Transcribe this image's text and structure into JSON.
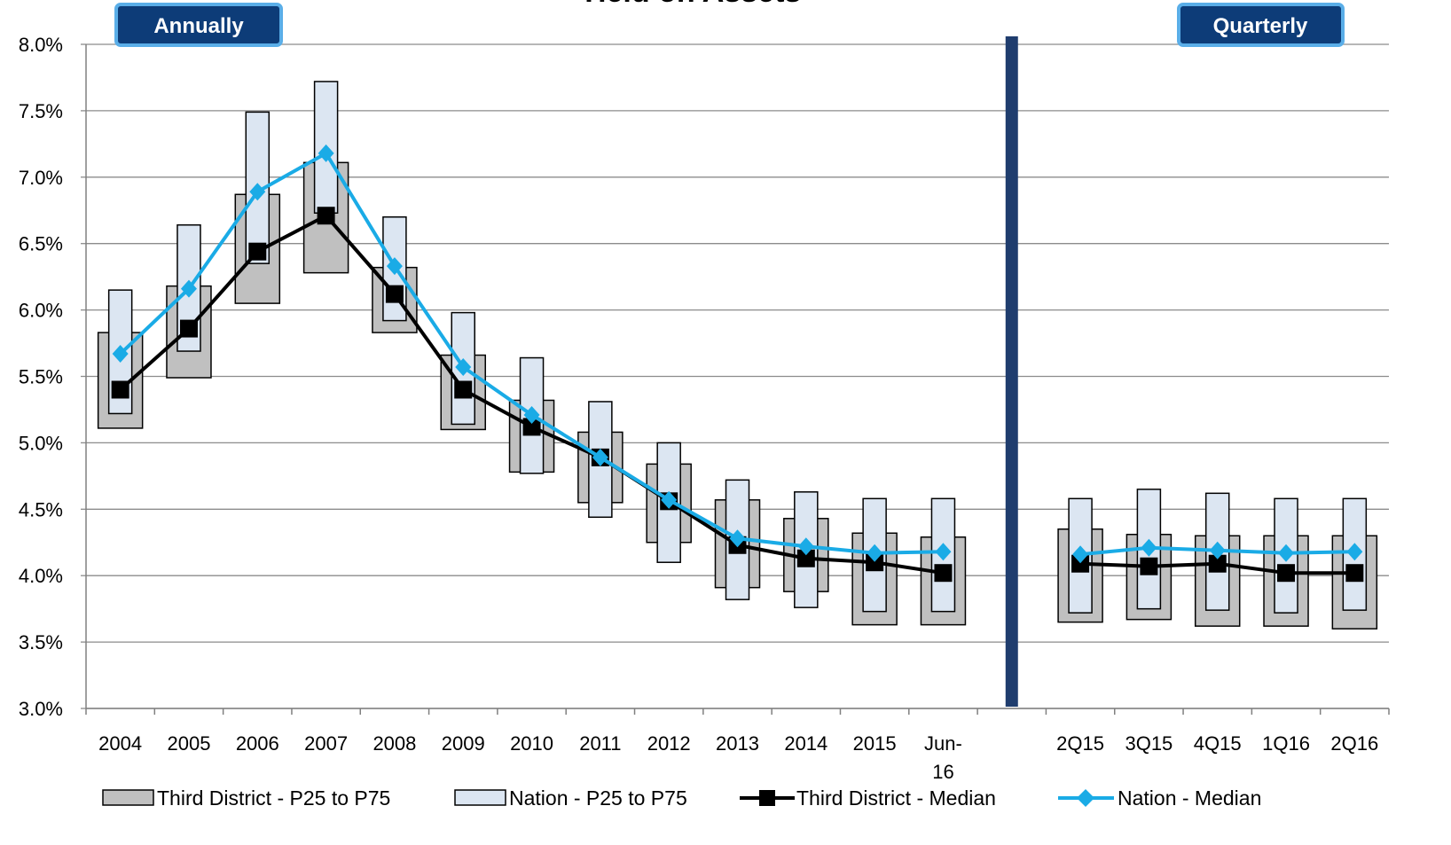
{
  "chart_data": {
    "type": "line",
    "title": "Yield on Assets",
    "ylim": [
      3.0,
      8.0
    ],
    "yticks": [
      "3.0%",
      "3.5%",
      "4.0%",
      "4.5%",
      "5.0%",
      "5.5%",
      "6.0%",
      "6.5%",
      "7.0%",
      "7.5%",
      "8.0%"
    ],
    "ytick_values": [
      3.0,
      3.5,
      4.0,
      4.5,
      5.0,
      5.5,
      6.0,
      6.5,
      7.0,
      7.5,
      8.0
    ],
    "grid": true,
    "legend_position": "bottom",
    "sections": {
      "annual_label": "Annually",
      "quarterly_label": "Quarterly"
    },
    "categories": [
      "2004",
      "2005",
      "2006",
      "2007",
      "2008",
      "2009",
      "2010",
      "2011",
      "2012",
      "2013",
      "2014",
      "2015",
      "Jun-16",
      "",
      "2Q15",
      "3Q15",
      "4Q15",
      "1Q16",
      "2Q16"
    ],
    "category_lines": [
      [
        "2004"
      ],
      [
        "2005"
      ],
      [
        "2006"
      ],
      [
        "2007"
      ],
      [
        "2008"
      ],
      [
        "2009"
      ],
      [
        "2010"
      ],
      [
        "2011"
      ],
      [
        "2012"
      ],
      [
        "2013"
      ],
      [
        "2014"
      ],
      [
        "2015"
      ],
      [
        "Jun-",
        "16"
      ],
      [],
      [
        "2Q15"
      ],
      [
        "3Q15"
      ],
      [
        "4Q15"
      ],
      [
        "1Q16"
      ],
      [
        "2Q16"
      ]
    ],
    "series": [
      {
        "name": "Third District - P25 to P75",
        "kind": "range",
        "color": "#c0c0c0",
        "low": [
          5.11,
          5.49,
          6.05,
          6.28,
          5.83,
          5.1,
          4.78,
          4.55,
          4.25,
          3.91,
          3.88,
          3.63,
          3.63,
          null,
          3.65,
          3.67,
          3.62,
          3.62,
          3.6
        ],
        "high": [
          5.83,
          6.18,
          6.87,
          7.11,
          6.32,
          5.66,
          5.32,
          5.08,
          4.84,
          4.57,
          4.43,
          4.32,
          4.29,
          null,
          4.35,
          4.31,
          4.3,
          4.3,
          4.3
        ]
      },
      {
        "name": "Nation - P25 to P75",
        "kind": "range",
        "color": "#dce6f2",
        "low": [
          5.22,
          5.69,
          6.35,
          6.73,
          5.92,
          5.14,
          4.77,
          4.44,
          4.1,
          3.82,
          3.76,
          3.73,
          3.73,
          null,
          3.72,
          3.75,
          3.74,
          3.72,
          3.74
        ],
        "high": [
          6.15,
          6.64,
          7.49,
          7.72,
          6.7,
          5.98,
          5.64,
          5.31,
          5.0,
          4.72,
          4.63,
          4.58,
          4.58,
          null,
          4.58,
          4.65,
          4.62,
          4.58,
          4.58
        ]
      },
      {
        "name": "Third District - Median",
        "kind": "line",
        "color": "#000000",
        "values": [
          5.4,
          5.86,
          6.44,
          6.71,
          6.12,
          5.4,
          5.12,
          4.89,
          4.56,
          4.23,
          4.13,
          4.1,
          4.02,
          null,
          4.09,
          4.07,
          4.09,
          4.02,
          4.02
        ]
      },
      {
        "name": "Nation - Median",
        "kind": "line",
        "color": "#1aabe6",
        "values": [
          5.67,
          6.16,
          6.89,
          7.18,
          6.33,
          5.57,
          5.21,
          4.89,
          4.57,
          4.28,
          4.22,
          4.17,
          4.18,
          null,
          4.16,
          4.21,
          4.19,
          4.17,
          4.18
        ]
      }
    ],
    "colors": {
      "divider": "#1f3d6e",
      "badge_fill": "#0d3c78",
      "badge_border": "#5aaee8",
      "grid": "#8c8c8c",
      "range_border": "#000000"
    }
  }
}
